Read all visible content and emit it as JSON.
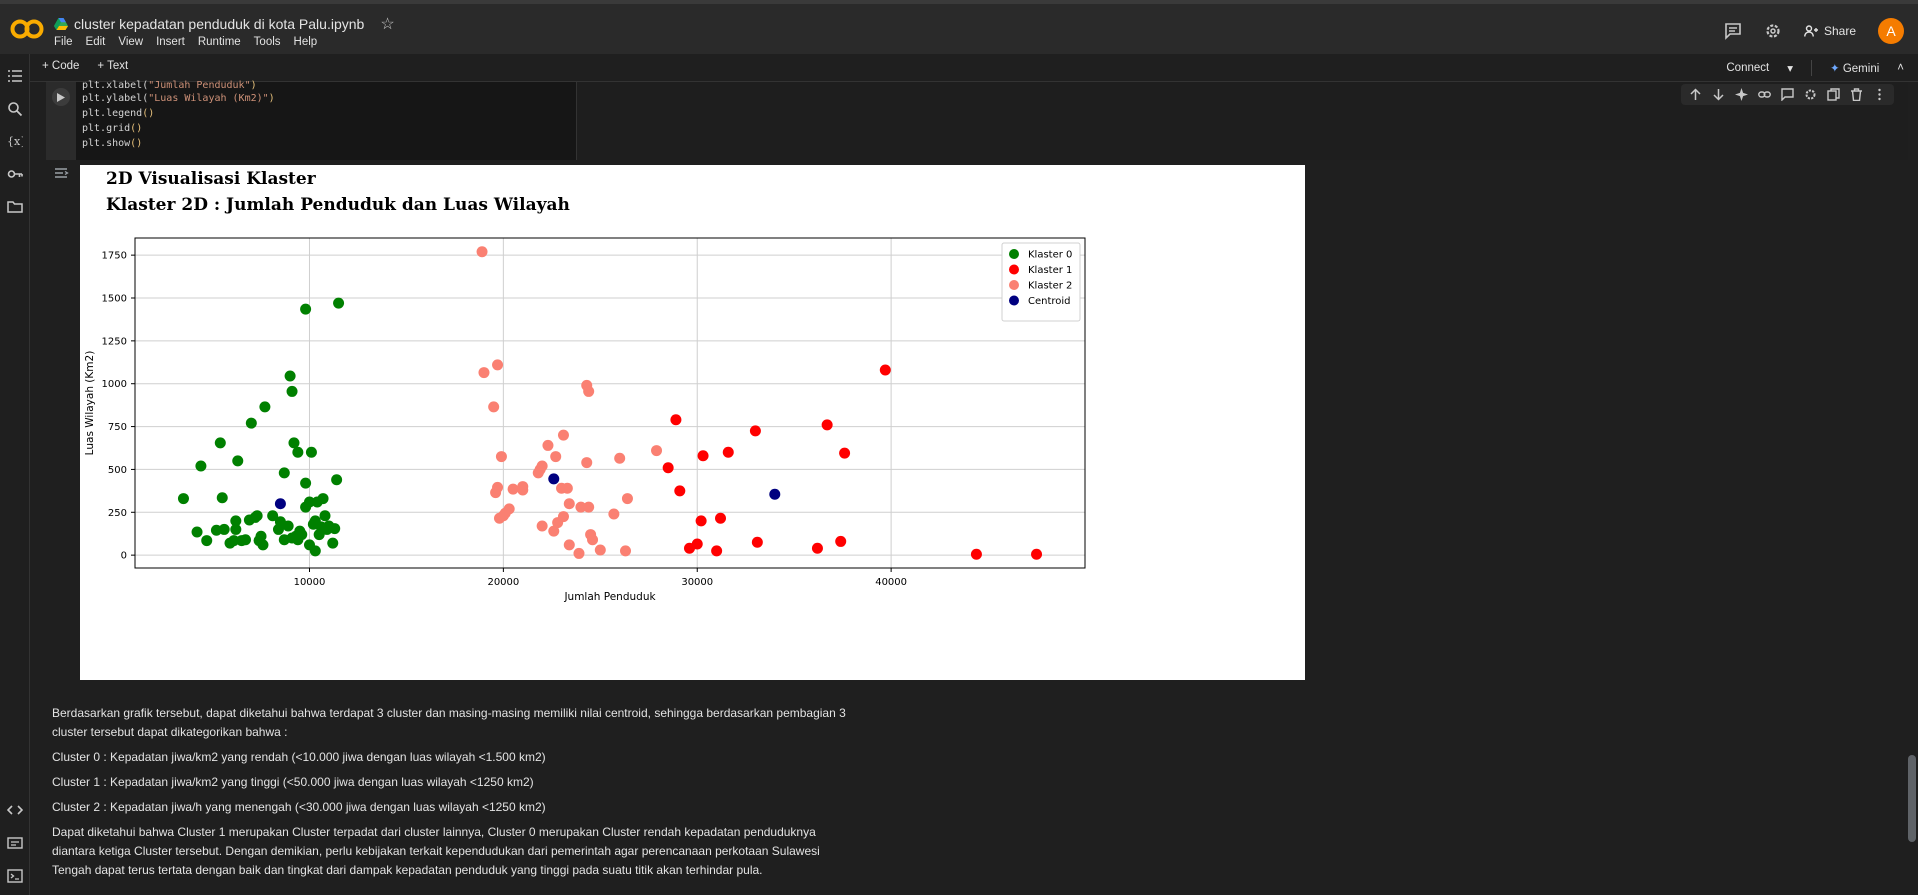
{
  "app": {
    "notebook_title": "cluster kepadatan penduduk di kota Palu.ipynb",
    "menu": [
      "File",
      "Edit",
      "View",
      "Insert",
      "Runtime",
      "Tools",
      "Help"
    ],
    "share_label": "Share",
    "avatar_letter": "A"
  },
  "toolbar": {
    "add_code": "+ Code",
    "add_text": "+ Text",
    "connect": "Connect",
    "gemini": "Gemini"
  },
  "code_cell": {
    "lines": [
      {
        "fn": "plt.xlabel(",
        "str": "\"Jumlah Penduduk\"",
        "end": ")"
      },
      {
        "fn": "plt.ylabel(",
        "str": "\"Luas Wilayah (Km2)\"",
        "end": ")"
      },
      {
        "fn": "plt.legend",
        "str": "",
        "end": "()"
      },
      {
        "fn": "plt.grid",
        "str": "",
        "end": "()"
      },
      {
        "fn": "plt.show",
        "str": "",
        "end": "()"
      }
    ]
  },
  "output": {
    "heading1": "2D Visualisasi Klaster",
    "heading2": "Klaster 2D : Jumlah Penduduk dan Luas Wilayah"
  },
  "chart_data": {
    "type": "scatter",
    "title": "",
    "xlabel": "Jumlah Penduduk",
    "ylabel": "Luas Wilayah (Km2)",
    "xlim": [
      1000,
      50000
    ],
    "ylim": [
      -75,
      1850
    ],
    "xticks": [
      10000,
      20000,
      30000,
      40000
    ],
    "yticks": [
      0,
      250,
      500,
      750,
      1000,
      1250,
      1500,
      1750
    ],
    "grid": true,
    "legend_position": "top-right",
    "series": [
      {
        "name": "Klaster 0",
        "color": "#008000",
        "points": [
          [
            3500,
            330
          ],
          [
            4400,
            520
          ],
          [
            4200,
            135
          ],
          [
            4700,
            85
          ],
          [
            5200,
            145
          ],
          [
            5400,
            655
          ],
          [
            5500,
            335
          ],
          [
            5600,
            150
          ],
          [
            5900,
            70
          ],
          [
            6100,
            85
          ],
          [
            6200,
            150
          ],
          [
            6200,
            200
          ],
          [
            6300,
            550
          ],
          [
            6500,
            85
          ],
          [
            6700,
            90
          ],
          [
            6900,
            205
          ],
          [
            7000,
            770
          ],
          [
            7200,
            220
          ],
          [
            7300,
            230
          ],
          [
            7500,
            110
          ],
          [
            7600,
            60
          ],
          [
            7400,
            85
          ],
          [
            7700,
            865
          ],
          [
            8100,
            230
          ],
          [
            8400,
            150
          ],
          [
            8500,
            195
          ],
          [
            8700,
            90
          ],
          [
            8700,
            480
          ],
          [
            8900,
            170
          ],
          [
            9000,
            1045
          ],
          [
            9100,
            100
          ],
          [
            9100,
            955
          ],
          [
            9200,
            655
          ],
          [
            9300,
            110
          ],
          [
            9400,
            90
          ],
          [
            9400,
            600
          ],
          [
            9500,
            140
          ],
          [
            9600,
            120
          ],
          [
            9800,
            280
          ],
          [
            9800,
            420
          ],
          [
            9800,
            1435
          ],
          [
            10000,
            310
          ],
          [
            10100,
            600
          ],
          [
            10000,
            60
          ],
          [
            10200,
            180
          ],
          [
            10300,
            25
          ],
          [
            10300,
            200
          ],
          [
            10400,
            310
          ],
          [
            10500,
            120
          ],
          [
            10600,
            165
          ],
          [
            10700,
            330
          ],
          [
            10800,
            230
          ],
          [
            10900,
            150
          ],
          [
            11000,
            170
          ],
          [
            11200,
            70
          ],
          [
            11300,
            155
          ],
          [
            11400,
            440
          ],
          [
            11500,
            1470
          ]
        ]
      },
      {
        "name": "Klaster 1",
        "color": "#ff0000",
        "points": [
          [
            28900,
            790
          ],
          [
            29100,
            375
          ],
          [
            28500,
            510
          ],
          [
            29600,
            40
          ],
          [
            30000,
            65
          ],
          [
            30200,
            200
          ],
          [
            30300,
            580
          ],
          [
            31000,
            25
          ],
          [
            31200,
            215
          ],
          [
            31600,
            600
          ],
          [
            33000,
            725
          ],
          [
            33100,
            75
          ],
          [
            36200,
            40
          ],
          [
            36700,
            760
          ],
          [
            37400,
            80
          ],
          [
            37600,
            595
          ],
          [
            39700,
            1080
          ],
          [
            44400,
            5
          ],
          [
            47500,
            5
          ]
        ]
      },
      {
        "name": "Klaster 2",
        "color": "#fa8072",
        "points": [
          [
            18900,
            1770
          ],
          [
            19000,
            1065
          ],
          [
            19500,
            865
          ],
          [
            19600,
            365
          ],
          [
            19700,
            1110
          ],
          [
            19700,
            395
          ],
          [
            19800,
            215
          ],
          [
            19900,
            575
          ],
          [
            20000,
            230
          ],
          [
            20100,
            245
          ],
          [
            20300,
            270
          ],
          [
            20500,
            385
          ],
          [
            21000,
            400
          ],
          [
            21000,
            380
          ],
          [
            21800,
            480
          ],
          [
            21900,
            500
          ],
          [
            22000,
            520
          ],
          [
            22000,
            170
          ],
          [
            22300,
            640
          ],
          [
            22600,
            140
          ],
          [
            22700,
            575
          ],
          [
            22800,
            190
          ],
          [
            23000,
            390
          ],
          [
            23100,
            225
          ],
          [
            23100,
            700
          ],
          [
            23300,
            390
          ],
          [
            23400,
            300
          ],
          [
            23400,
            60
          ],
          [
            23900,
            10
          ],
          [
            24000,
            280
          ],
          [
            24300,
            990
          ],
          [
            24300,
            540
          ],
          [
            24400,
            955
          ],
          [
            24400,
            280
          ],
          [
            24500,
            120
          ],
          [
            24600,
            90
          ],
          [
            25000,
            30
          ],
          [
            25700,
            240
          ],
          [
            26000,
            565
          ],
          [
            26300,
            25
          ],
          [
            26400,
            330
          ],
          [
            27900,
            610
          ]
        ]
      },
      {
        "name": "Centroid",
        "color": "#000080",
        "points": [
          [
            8500,
            300
          ],
          [
            22600,
            445
          ],
          [
            34000,
            355
          ]
        ]
      }
    ]
  },
  "text_cell": {
    "p1": "Berdasarkan grafik tersebut, dapat diketahui bahwa terdapat 3 cluster dan masing-masing memiliki nilai centroid, sehingga berdasarkan pembagian 3 cluster tersebut dapat dikategorikan bahwa :",
    "p2": "Cluster 0 : Kepadatan jiwa/km2 yang rendah (<10.000 jiwa dengan luas wilayah <1.500 km2)",
    "p3": "Cluster 1 : Kepadatan jiwa/km2 yang tinggi (<50.000 jiwa dengan luas wilayah <1250 km2)",
    "p4": "Cluster 2 : Kepadatan jiwa/h yang menengah (<30.000 jiwa dengan luas wilayah <1250 km2)",
    "p5": "Dapat diketahui bahwa Cluster 1 merupakan Cluster terpadat dari cluster lainnya, Cluster 0 merupakan Cluster rendah kepadatan penduduknya diantara ketiga Cluster tersebut. Dengan demikian, perlu kebijakan terkait kependudukan dari pemerintah agar perencanaan perkotaan Sulawesi Tengah dapat terus tertata dengan baik dan tingkat dari dampak kepadatan penduduk yang tinggi pada suatu titik akan terhindar pula."
  },
  "icons": [
    "colab-logo",
    "drive-icon",
    "star-icon",
    "comment-icon",
    "gear-icon",
    "share-icon",
    "toc-icon",
    "search-icon",
    "variables-icon",
    "key-icon",
    "folder-icon",
    "code-icon",
    "terminal-icon",
    "command-icon",
    "run-icon",
    "arrow-up-icon",
    "arrow-down-icon",
    "sparkle-icon",
    "link-icon",
    "comment-icon",
    "gear-icon",
    "mirror-icon",
    "trash-icon",
    "more-icon",
    "output-toggle-icon"
  ]
}
